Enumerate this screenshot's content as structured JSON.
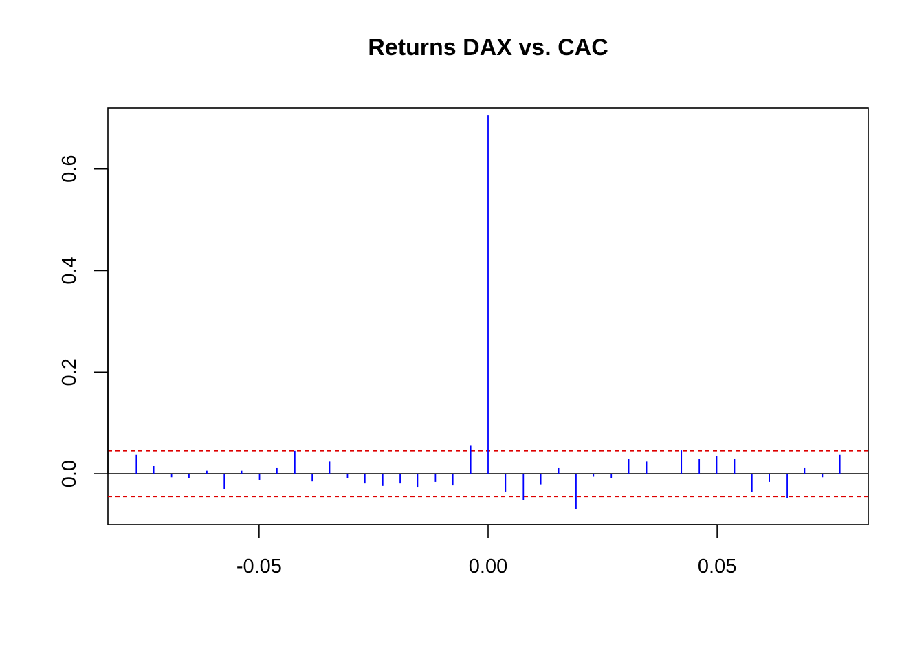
{
  "chart_data": {
    "type": "bar",
    "title": "Returns DAX vs. CAC",
    "xlabel": "",
    "ylabel": "",
    "xlim": [
      -0.083,
      0.083
    ],
    "ylim": [
      -0.1,
      0.72
    ],
    "x_ticks": [
      -0.05,
      0.0,
      0.05
    ],
    "x_tick_labels": [
      "-0.05",
      "0.00",
      "0.05"
    ],
    "y_ticks": [
      0.0,
      0.2,
      0.4,
      0.6
    ],
    "y_tick_labels": [
      "0.0",
      "0.2",
      "0.4",
      "0.6"
    ],
    "grid": false,
    "series": [
      {
        "x": [
          -0.0768,
          -0.073,
          -0.0691,
          -0.0653,
          -0.0614,
          -0.0576,
          -0.0538,
          -0.0499,
          -0.0461,
          -0.0422,
          -0.0384,
          -0.0346,
          -0.0307,
          -0.0269,
          -0.023,
          -0.0192,
          -0.0154,
          -0.0115,
          -0.0077,
          -0.0038,
          0.0,
          0.0038,
          0.0077,
          0.0115,
          0.0154,
          0.0192,
          0.023,
          0.0269,
          0.0307,
          0.0346,
          0.0384,
          0.0422,
          0.0461,
          0.0499,
          0.0538,
          0.0576,
          0.0614,
          0.0653,
          0.0691,
          0.073,
          0.0768
        ],
        "values": [
          0.037,
          0.015,
          -0.007,
          -0.009,
          0.006,
          -0.03,
          0.006,
          -0.012,
          0.011,
          0.045,
          -0.015,
          0.024,
          -0.008,
          -0.019,
          -0.024,
          -0.019,
          -0.027,
          -0.016,
          -0.023,
          0.055,
          0.705,
          -0.035,
          -0.052,
          -0.021,
          0.011,
          -0.069,
          -0.006,
          -0.008,
          0.029,
          0.024,
          0.0,
          0.046,
          0.029,
          0.035,
          0.029,
          -0.036,
          -0.016,
          -0.048,
          0.011,
          -0.007,
          0.037
        ],
        "color": "#0000ff"
      }
    ],
    "reference_lines": {
      "zero_color": "#000000",
      "confidence_levels": [
        0.045,
        -0.045
      ],
      "confidence_color": "#dd0000"
    }
  }
}
